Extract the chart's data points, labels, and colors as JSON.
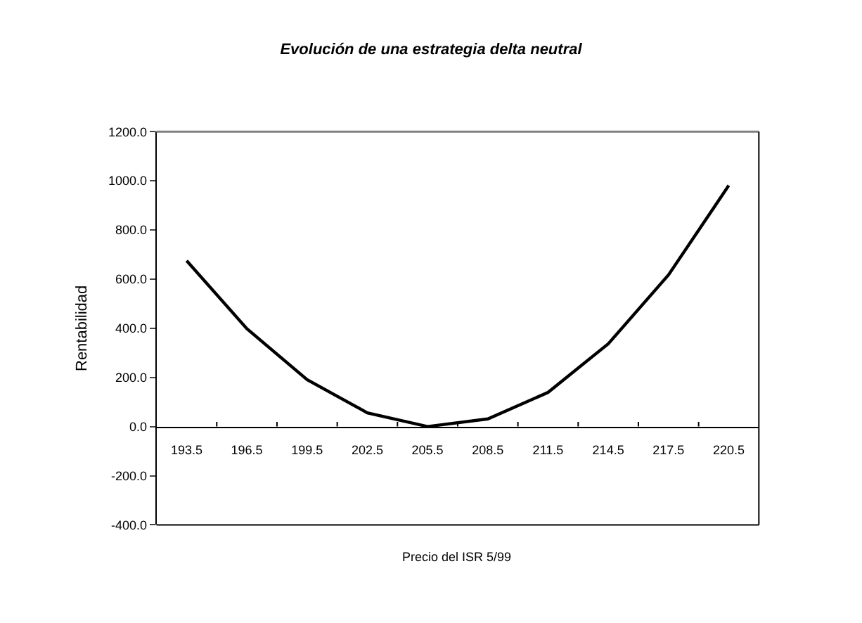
{
  "chart_data": {
    "type": "line",
    "title": "Evolución de una estrategia delta neutral",
    "xlabel": "Precio del ISR 5/99",
    "ylabel": "Rentabilidad",
    "categories": [
      "193.5",
      "196.5",
      "199.5",
      "202.5",
      "205.5",
      "208.5",
      "211.5",
      "214.5",
      "217.5",
      "220.5"
    ],
    "series": [
      {
        "color": "#000000",
        "values": [
          675,
          398,
          191,
          56,
          0,
          31,
          139,
          337,
          617,
          981
        ]
      }
    ],
    "ylim": [
      -400,
      1200
    ],
    "yticks": [
      {
        "value": -400,
        "label": "-400.0"
      },
      {
        "value": -200,
        "label": "-200.0"
      },
      {
        "value": 0,
        "label": "0.0"
      },
      {
        "value": 200,
        "label": "200.0"
      },
      {
        "value": 400,
        "label": "400.0"
      },
      {
        "value": 600,
        "label": "600.0"
      },
      {
        "value": 800,
        "label": "800.0"
      },
      {
        "value": 1000,
        "label": "1000.0"
      },
      {
        "value": 1200,
        "label": "1200.0"
      }
    ],
    "legend": false,
    "marker": "none",
    "line_style": "solid"
  }
}
